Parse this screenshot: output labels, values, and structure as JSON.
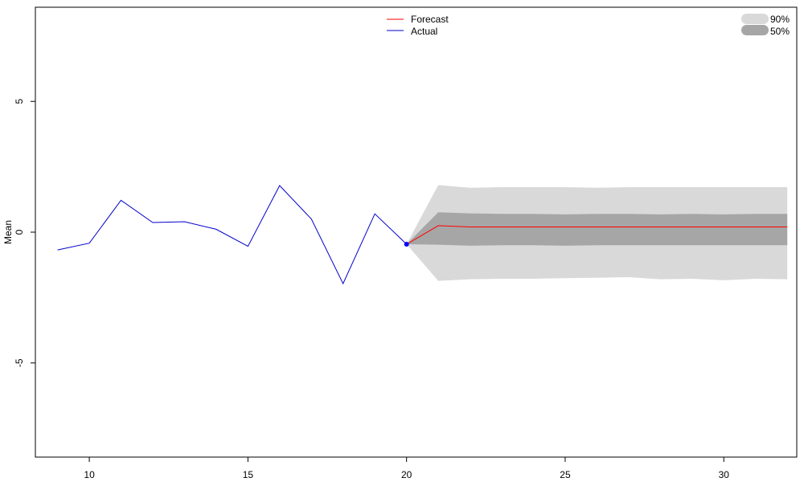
{
  "chart_data": {
    "type": "line",
    "title": "",
    "xlabel": "",
    "ylabel": "Mean",
    "xlim": [
      8.3,
      32.3
    ],
    "ylim": [
      -8.6,
      8.6
    ],
    "x_ticks": [
      10,
      15,
      20,
      25,
      30
    ],
    "y_ticks": [
      -5,
      0,
      5
    ],
    "grid": false,
    "legend": {
      "lines": [
        {
          "name": "Forecast",
          "color": "#ff0000"
        },
        {
          "name": "Actual",
          "color": "#0000cc"
        }
      ],
      "bands": [
        {
          "name": "90%",
          "color": "#d9d9d9"
        },
        {
          "name": "50%",
          "color": "#a6a6a6"
        }
      ]
    },
    "series": [
      {
        "name": "Actual",
        "color": "#0000cc",
        "x": [
          9,
          10,
          11,
          12,
          13,
          14,
          15,
          16,
          17,
          18,
          19,
          20
        ],
        "values": [
          -0.68,
          -0.42,
          1.22,
          0.37,
          0.4,
          0.11,
          -0.54,
          1.78,
          0.5,
          -1.97,
          0.7,
          -0.46
        ]
      },
      {
        "name": "Forecast",
        "color": "#ff0000",
        "x": [
          20,
          21,
          22,
          23,
          24,
          25,
          26,
          27,
          28,
          29,
          30,
          31,
          32
        ],
        "values": [
          -0.46,
          0.25,
          0.2,
          0.2,
          0.2,
          0.2,
          0.2,
          0.2,
          0.2,
          0.2,
          0.2,
          0.2,
          0.2
        ]
      }
    ],
    "bands": [
      {
        "name": "90%",
        "color": "#d9d9d9",
        "x": [
          20,
          21,
          22,
          23,
          24,
          25,
          26,
          27,
          28,
          29,
          30,
          31,
          32
        ],
        "lower": [
          -0.46,
          -1.86,
          -1.8,
          -1.78,
          -1.78,
          -1.76,
          -1.74,
          -1.72,
          -1.8,
          -1.78,
          -1.84,
          -1.78,
          -1.8
        ],
        "upper": [
          -0.46,
          1.8,
          1.7,
          1.72,
          1.72,
          1.72,
          1.7,
          1.72,
          1.72,
          1.72,
          1.72,
          1.72,
          1.72
        ]
      },
      {
        "name": "50%",
        "color": "#a6a6a6",
        "x": [
          20,
          21,
          22,
          23,
          24,
          25,
          26,
          27,
          28,
          29,
          30,
          31,
          32
        ],
        "lower": [
          -0.46,
          -0.48,
          -0.52,
          -0.5,
          -0.5,
          -0.52,
          -0.5,
          -0.5,
          -0.5,
          -0.5,
          -0.5,
          -0.5,
          -0.5
        ],
        "upper": [
          -0.46,
          0.76,
          0.72,
          0.7,
          0.7,
          0.68,
          0.7,
          0.7,
          0.68,
          0.7,
          0.68,
          0.7,
          0.7
        ]
      }
    ],
    "markers": [
      {
        "series": "Actual",
        "x": 20,
        "y": -0.46,
        "color": "#0000ff"
      }
    ]
  }
}
